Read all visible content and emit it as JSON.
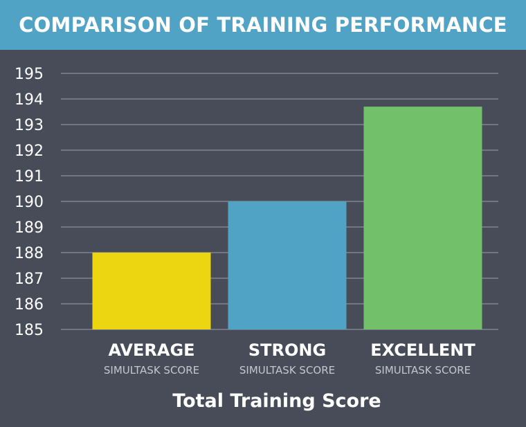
{
  "header": {
    "title": "COMPARISON OF TRAINING PERFORMANCE"
  },
  "colors": {
    "background": "#474c58",
    "header_background": "#51a3c5",
    "gridline": "#7f8591",
    "text": "#ffffff",
    "subtext": "#c3c8d0"
  },
  "chart_data": {
    "type": "bar",
    "categories": [
      "AVERAGE",
      "STRONG",
      "EXCELLENT"
    ],
    "category_subtitle": "SIMULTASK SCORE",
    "values": [
      188,
      190,
      193.7
    ],
    "bar_colors": [
      "#ecd611",
      "#51a3c5",
      "#73c06b"
    ],
    "xlabel": "Total Training Score",
    "ylabel": "",
    "ylim": [
      185,
      195
    ],
    "yticks": [
      185,
      186,
      187,
      188,
      189,
      190,
      191,
      192,
      193,
      194,
      195
    ],
    "grid": true
  }
}
